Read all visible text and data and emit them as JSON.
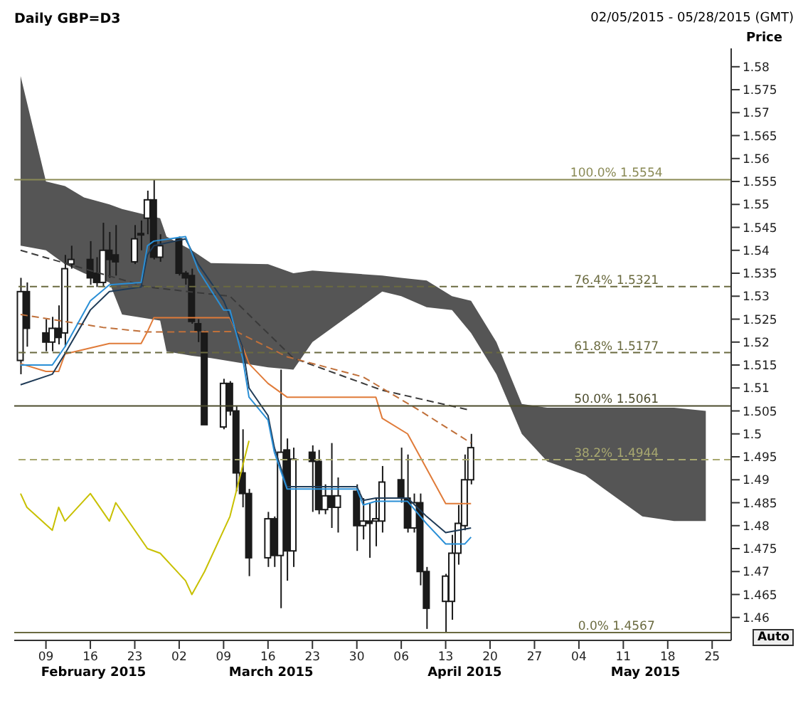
{
  "chart_data": {
    "type": "candlestick",
    "title": "Daily GBP=D3",
    "subtitle": "02/05/2015 - 05/28/2015 (GMT)",
    "ylabel": "Price",
    "color": "#1a1a1a",
    "x": [
      "2015-02-05",
      "2015-02-06",
      "2015-02-09",
      "2015-02-10",
      "2015-02-11",
      "2015-02-12",
      "2015-02-13",
      "2015-02-16",
      "2015-02-17",
      "2015-02-18",
      "2015-02-19",
      "2015-02-20",
      "2015-02-23",
      "2015-02-24",
      "2015-02-25",
      "2015-02-26",
      "2015-02-27",
      "2015-03-02",
      "2015-03-03",
      "2015-03-04",
      "2015-03-05",
      "2015-03-06",
      "2015-03-09",
      "2015-03-10",
      "2015-03-11",
      "2015-03-12",
      "2015-03-13",
      "2015-03-16",
      "2015-03-17",
      "2015-03-18",
      "2015-03-19",
      "2015-03-20",
      "2015-03-23",
      "2015-03-24",
      "2015-03-25",
      "2015-03-26",
      "2015-03-27",
      "2015-03-30",
      "2015-03-31",
      "2015-04-01",
      "2015-04-02",
      "2015-04-03",
      "2015-04-06",
      "2015-04-07",
      "2015-04-08",
      "2015-04-09",
      "2015-04-10",
      "2015-04-13",
      "2015-04-14",
      "2015-04-15",
      "2015-04-16",
      "2015-04-17"
    ],
    "ohlc": [
      [
        1.516,
        1.534,
        1.513,
        1.531
      ],
      [
        1.531,
        1.533,
        1.519,
        1.523
      ],
      [
        1.522,
        1.525,
        1.518,
        1.52
      ],
      [
        1.52,
        1.5255,
        1.518,
        1.523
      ],
      [
        1.523,
        1.528,
        1.5195,
        1.521
      ],
      [
        1.522,
        1.539,
        1.519,
        1.536
      ],
      [
        1.537,
        1.541,
        1.536,
        1.538
      ],
      [
        1.538,
        1.542,
        1.5325,
        1.534
      ],
      [
        1.535,
        1.5385,
        1.532,
        1.533
      ],
      [
        1.533,
        1.546,
        1.532,
        1.54
      ],
      [
        1.54,
        1.544,
        1.534,
        1.538
      ],
      [
        1.539,
        1.5455,
        1.5345,
        1.5375
      ],
      [
        1.5375,
        1.5455,
        1.537,
        1.5425
      ],
      [
        1.5435,
        1.5465,
        1.54,
        1.5435
      ],
      [
        1.547,
        1.553,
        1.5435,
        1.551
      ],
      [
        1.551,
        1.5554,
        1.538,
        1.5385
      ],
      [
        1.5385,
        1.5435,
        1.5375,
        1.541
      ],
      [
        1.5425,
        1.543,
        1.5345,
        1.535
      ],
      [
        1.535,
        1.5355,
        1.5325,
        1.534
      ],
      [
        1.5345,
        1.536,
        1.524,
        1.5245
      ],
      [
        1.524,
        1.525,
        1.52,
        1.5225
      ],
      [
        1.522,
        1.5225,
        1.502,
        1.502
      ],
      [
        1.5015,
        1.512,
        1.501,
        1.511
      ],
      [
        1.511,
        1.5115,
        1.504,
        1.505
      ],
      [
        1.505,
        1.506,
        1.4875,
        1.4915
      ],
      [
        1.4915,
        1.501,
        1.484,
        1.487
      ],
      [
        1.487,
        1.488,
        1.469,
        1.473
      ],
      [
        1.473,
        1.483,
        1.471,
        1.4815
      ],
      [
        1.4815,
        1.482,
        1.471,
        1.4735
      ],
      [
        1.4735,
        1.514,
        1.462,
        1.496
      ],
      [
        1.4965,
        1.499,
        1.468,
        1.4745
      ],
      [
        1.4745,
        1.497,
        1.471,
        1.4945
      ],
      [
        1.496,
        1.4975,
        1.483,
        1.494
      ],
      [
        1.494,
        1.4965,
        1.4825,
        1.4835
      ],
      [
        1.4835,
        1.489,
        1.4825,
        1.4865
      ],
      [
        1.4865,
        1.498,
        1.4795,
        1.484
      ],
      [
        1.484,
        1.4905,
        1.4785,
        1.4865
      ],
      [
        1.4875,
        1.489,
        1.4745,
        1.48
      ],
      [
        1.48,
        1.486,
        1.477,
        1.481
      ],
      [
        1.481,
        1.485,
        1.473,
        1.4805
      ],
      [
        1.481,
        1.486,
        1.4755,
        1.4815
      ],
      [
        1.481,
        1.493,
        1.4785,
        1.4895
      ],
      [
        1.49,
        1.497,
        1.485,
        1.486
      ],
      [
        1.486,
        1.4955,
        1.4785,
        1.4795
      ],
      [
        1.4795,
        1.487,
        1.4785,
        1.485
      ],
      [
        1.485,
        1.487,
        1.467,
        1.47
      ],
      [
        1.47,
        1.471,
        1.4575,
        1.462
      ],
      [
        1.4635,
        1.4695,
        1.4567,
        1.469
      ],
      [
        1.4635,
        1.478,
        1.4595,
        1.474
      ],
      [
        1.474,
        1.4845,
        1.4715,
        1.4805
      ],
      [
        1.48,
        1.4955,
        1.479,
        1.49
      ],
      [
        1.49,
        1.5,
        1.489,
        1.497
      ]
    ],
    "series": [
      {
        "type": "area",
        "color": "#555555",
        "x": [
          "2015-02-05",
          "2015-02-09",
          "2015-02-12",
          "2015-02-15",
          "2015-02-19",
          "2015-02-21",
          "2015-02-27",
          "2015-02-28",
          "2015-03-04",
          "2015-03-07",
          "2015-03-16",
          "2015-03-20",
          "2015-03-23",
          "2015-03-29",
          "2015-04-03",
          "2015-04-06",
          "2015-04-10",
          "2015-04-14",
          "2015-04-17",
          "2015-04-21",
          "2015-04-25",
          "2015-04-29",
          "2015-05-05",
          "2015-05-08",
          "2015-05-14",
          "2015-05-19",
          "2015-05-24"
        ],
        "values": [
          null,
          null,
          null,
          null,
          null,
          null,
          null,
          null,
          null,
          null,
          null,
          null,
          null,
          null,
          null,
          null,
          null,
          null,
          null,
          null,
          null,
          null,
          null,
          null,
          null,
          null,
          null
        ],
        "upper": [
          1.578,
          1.555,
          1.554,
          1.5515,
          1.55,
          1.549,
          1.547,
          1.543,
          1.54,
          1.5372,
          1.537,
          1.535,
          1.5356,
          1.535,
          1.5345,
          1.534,
          1.5334,
          1.53,
          1.529,
          1.52,
          1.5065,
          1.5057,
          1.5057,
          1.5057,
          1.5057,
          1.5057,
          1.505
        ],
        "lower": [
          1.541,
          1.54,
          1.537,
          1.535,
          1.533,
          1.526,
          1.5247,
          1.518,
          1.517,
          1.5165,
          1.5145,
          1.514,
          1.52,
          1.526,
          1.531,
          1.53,
          1.5276,
          1.527,
          1.522,
          1.513,
          1.5,
          1.494,
          1.491,
          1.488,
          1.482,
          1.481,
          1.481
        ]
      },
      {
        "type": "line",
        "color": "#c8c000",
        "x": [
          "2015-02-05",
          "2015-02-06",
          "2015-02-10",
          "2015-02-11",
          "2015-02-12",
          "2015-02-16",
          "2015-02-19",
          "2015-02-20",
          "2015-02-25",
          "2015-02-27",
          "2015-03-03",
          "2015-03-04",
          "2015-03-06",
          "2015-03-10",
          "2015-03-13"
        ],
        "values": [
          1.487,
          1.484,
          1.479,
          1.484,
          1.481,
          1.487,
          1.481,
          1.485,
          1.475,
          1.474,
          1.468,
          1.465,
          1.47,
          1.482,
          1.4985
        ]
      },
      {
        "type": "line",
        "color": "#3a3a3a",
        "line_style": "dashed",
        "x": [
          "2015-02-05",
          "2015-02-25",
          "2015-03-10",
          "2015-03-20",
          "2015-04-03",
          "2015-04-17"
        ],
        "values": [
          1.54,
          1.532,
          1.53,
          1.5165,
          1.5095,
          1.5051
        ]
      },
      {
        "type": "line",
        "color": "#c0703a",
        "line_style": "dashed",
        "x": [
          "2015-02-05",
          "2015-02-18",
          "2015-02-25",
          "2015-03-11",
          "2015-03-19",
          "2015-03-31",
          "2015-04-09",
          "2015-04-17"
        ],
        "values": [
          1.526,
          1.5232,
          1.5222,
          1.5223,
          1.5168,
          1.5124,
          1.505,
          1.498
        ]
      },
      {
        "type": "line",
        "color": "#e07b39",
        "x": [
          "2015-02-05",
          "2015-02-09",
          "2015-02-11",
          "2015-02-12",
          "2015-02-19",
          "2015-02-24",
          "2015-02-25",
          "2015-02-26",
          "2015-03-10",
          "2015-03-12",
          "2015-03-13",
          "2015-03-16",
          "2015-03-19",
          "2015-04-02",
          "2015-04-03",
          "2015-04-07",
          "2015-04-13",
          "2015-04-17"
        ],
        "values": [
          1.5153,
          1.5136,
          1.5136,
          1.5174,
          1.5197,
          1.5197,
          1.5223,
          1.5253,
          1.5253,
          1.519,
          1.5153,
          1.511,
          1.508,
          1.508,
          1.5034,
          1.5,
          1.4848,
          1.4848
        ]
      },
      {
        "type": "line",
        "color": "#1f3b57",
        "x": [
          "2015-02-05",
          "2015-02-10",
          "2015-02-12",
          "2015-02-16",
          "2015-02-19",
          "2015-02-24",
          "2015-02-25",
          "2015-02-26",
          "2015-03-03",
          "2015-03-05",
          "2015-03-09",
          "2015-03-12",
          "2015-03-13",
          "2015-03-16",
          "2015-03-17",
          "2015-03-19",
          "2015-03-30",
          "2015-03-31",
          "2015-04-02",
          "2015-04-07",
          "2015-04-10",
          "2015-04-13",
          "2015-04-17"
        ],
        "values": [
          1.5107,
          1.513,
          1.5175,
          1.527,
          1.531,
          1.532,
          1.539,
          1.541,
          1.5425,
          1.537,
          1.529,
          1.519,
          1.51,
          1.504,
          1.497,
          1.4885,
          1.4885,
          1.4855,
          1.486,
          1.486,
          1.482,
          1.4785,
          1.4795
        ]
      },
      {
        "type": "line",
        "color": "#2a8fd6",
        "x": [
          "2015-02-05",
          "2015-02-10",
          "2015-02-12",
          "2015-02-16",
          "2015-02-19",
          "2015-02-24",
          "2015-02-25",
          "2015-02-26",
          "2015-03-03",
          "2015-03-05",
          "2015-03-09",
          "2015-03-10",
          "2015-03-12",
          "2015-03-13",
          "2015-03-16",
          "2015-03-17",
          "2015-03-19",
          "2015-03-30",
          "2015-03-31",
          "2015-04-02",
          "2015-04-07",
          "2015-04-10",
          "2015-04-13",
          "2015-04-16",
          "2015-04-17"
        ],
        "values": [
          1.515,
          1.515,
          1.519,
          1.529,
          1.5325,
          1.533,
          1.541,
          1.542,
          1.543,
          1.5357,
          1.527,
          1.527,
          1.5165,
          1.508,
          1.503,
          1.496,
          1.488,
          1.488,
          1.4845,
          1.4853,
          1.4853,
          1.4804,
          1.476,
          1.476,
          1.4775
        ]
      }
    ],
    "ref_lines": [
      {
        "axis": "y",
        "value": 1.5554,
        "label": "100.0% 1.5554",
        "color": "#8a8a55",
        "line_style": "solid"
      },
      {
        "axis": "y",
        "value": 1.5321,
        "label": "76.4% 1.5321",
        "color": "#6b6b40",
        "line_style": "dashed"
      },
      {
        "axis": "y",
        "value": 1.5177,
        "label": "61.8% 1.5177",
        "color": "#6b6b40",
        "line_style": "dashed"
      },
      {
        "axis": "y",
        "value": 1.5061,
        "label": "50.0% 1.5061",
        "color": "#4d4d2e",
        "line_style": "solid"
      },
      {
        "axis": "y",
        "value": 1.4944,
        "label": "38.2% 1.4944",
        "color": "#a8a870",
        "line_style": "dashed"
      },
      {
        "axis": "y",
        "value": 1.4567,
        "label": "0.0% 1.4567",
        "color": "#6b6b40",
        "line_style": "solid"
      }
    ],
    "annotations": [
      "February 2015",
      "March 2015",
      "April 2015",
      "May 2015",
      "Auto"
    ],
    "xlim": [
      "2015-02-04",
      "2015-05-28"
    ],
    "xticks": [
      {
        "value": "2015-02-09",
        "label": "09"
      },
      {
        "value": "2015-02-16",
        "label": "16"
      },
      {
        "value": "2015-02-23",
        "label": "23"
      },
      {
        "value": "2015-03-02",
        "label": "02"
      },
      {
        "value": "2015-03-09",
        "label": "09"
      },
      {
        "value": "2015-03-16",
        "label": "16"
      },
      {
        "value": "2015-03-23",
        "label": "23"
      },
      {
        "value": "2015-03-30",
        "label": "30"
      },
      {
        "value": "2015-04-06",
        "label": "06"
      },
      {
        "value": "2015-04-13",
        "label": "13"
      },
      {
        "value": "2015-04-20",
        "label": "20"
      },
      {
        "value": "2015-04-27",
        "label": "27"
      },
      {
        "value": "2015-05-04",
        "label": "04"
      },
      {
        "value": "2015-05-11",
        "label": "11"
      },
      {
        "value": "2015-05-18",
        "label": "18"
      },
      {
        "value": "2015-05-25",
        "label": "25"
      }
    ],
    "ylim": [
      1.455,
      1.584
    ],
    "yticks": [
      1.46,
      1.465,
      1.47,
      1.475,
      1.48,
      1.485,
      1.49,
      1.495,
      1.5,
      1.505,
      1.51,
      1.515,
      1.52,
      1.525,
      1.53,
      1.535,
      1.54,
      1.545,
      1.55,
      1.555,
      1.56,
      1.565,
      1.57,
      1.575,
      1.58
    ]
  }
}
